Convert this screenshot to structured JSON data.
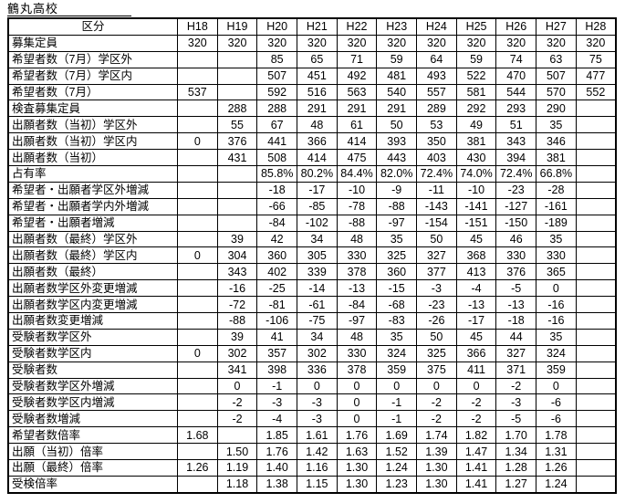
{
  "title": "鶴丸高校",
  "chart_data": {
    "type": "table",
    "title": "鶴丸高校",
    "columns": [
      "区分",
      "H18",
      "H19",
      "H20",
      "H21",
      "H22",
      "H23",
      "H24",
      "H25",
      "H26",
      "H27",
      "H28"
    ],
    "rows": [
      {
        "label": "募集定員",
        "values": [
          "320",
          "320",
          "320",
          "320",
          "320",
          "320",
          "320",
          "320",
          "320",
          "320",
          "320"
        ]
      },
      {
        "label": "希望者数（7月）学区外",
        "values": [
          "",
          "",
          "85",
          "65",
          "71",
          "59",
          "64",
          "59",
          "74",
          "63",
          "75"
        ]
      },
      {
        "label": "希望者数（7月）学区内",
        "values": [
          "",
          "",
          "507",
          "451",
          "492",
          "481",
          "493",
          "522",
          "470",
          "507",
          "477"
        ]
      },
      {
        "label": "希望者数（7月）",
        "values": [
          "537",
          "",
          "592",
          "516",
          "563",
          "540",
          "557",
          "581",
          "544",
          "570",
          "552"
        ]
      },
      {
        "label": "検査募集定員",
        "values": [
          "",
          "288",
          "288",
          "291",
          "291",
          "291",
          "289",
          "292",
          "293",
          "290",
          ""
        ]
      },
      {
        "label": "出願者数（当初）学区外",
        "values": [
          "",
          "55",
          "67",
          "48",
          "61",
          "50",
          "53",
          "49",
          "51",
          "35",
          ""
        ]
      },
      {
        "label": "出願者数（当初）学区内",
        "values": [
          "0",
          "376",
          "441",
          "366",
          "414",
          "393",
          "350",
          "381",
          "343",
          "346",
          ""
        ]
      },
      {
        "label": "出願者数（当初）",
        "values": [
          "",
          "431",
          "508",
          "414",
          "475",
          "443",
          "403",
          "430",
          "394",
          "381",
          ""
        ]
      },
      {
        "label": "占有率",
        "values": [
          "",
          "",
          "85.8%",
          "80.2%",
          "84.4%",
          "82.0%",
          "72.4%",
          "74.0%",
          "72.4%",
          "66.8%",
          ""
        ]
      },
      {
        "label": "希望者・出願者学区外増減",
        "values": [
          "",
          "",
          "-18",
          "-17",
          "-10",
          "-9",
          "-11",
          "-10",
          "-23",
          "-28",
          ""
        ]
      },
      {
        "label": "希望者・出願者学内外増減",
        "values": [
          "",
          "",
          "-66",
          "-85",
          "-78",
          "-88",
          "-143",
          "-141",
          "-127",
          "-161",
          ""
        ]
      },
      {
        "label": "希望者・出願者増減",
        "values": [
          "",
          "",
          "-84",
          "-102",
          "-88",
          "-97",
          "-154",
          "-151",
          "-150",
          "-189",
          ""
        ]
      },
      {
        "label": "出願者数（最終）学区外",
        "values": [
          "",
          "39",
          "42",
          "34",
          "48",
          "35",
          "50",
          "45",
          "46",
          "35",
          ""
        ]
      },
      {
        "label": "出願者数（最終）学区内",
        "values": [
          "0",
          "304",
          "360",
          "305",
          "330",
          "325",
          "327",
          "368",
          "330",
          "330",
          ""
        ]
      },
      {
        "label": "出願者数（最終）",
        "values": [
          "",
          "343",
          "402",
          "339",
          "378",
          "360",
          "377",
          "413",
          "376",
          "365",
          ""
        ]
      },
      {
        "label": "出願者数学区外変更増減",
        "values": [
          "",
          "-16",
          "-25",
          "-14",
          "-13",
          "-15",
          "-3",
          "-4",
          "-5",
          "0",
          ""
        ]
      },
      {
        "label": "出願者数学区内変更増減",
        "values": [
          "",
          "-72",
          "-81",
          "-61",
          "-84",
          "-68",
          "-23",
          "-13",
          "-13",
          "-16",
          ""
        ]
      },
      {
        "label": "出願者数変更増減",
        "values": [
          "",
          "-88",
          "-106",
          "-75",
          "-97",
          "-83",
          "-26",
          "-17",
          "-18",
          "-16",
          ""
        ]
      },
      {
        "label": "受験者数学区外",
        "values": [
          "",
          "39",
          "41",
          "34",
          "48",
          "35",
          "50",
          "45",
          "44",
          "35",
          ""
        ]
      },
      {
        "label": "受験者数学区内",
        "values": [
          "0",
          "302",
          "357",
          "302",
          "330",
          "324",
          "325",
          "366",
          "327",
          "324",
          ""
        ]
      },
      {
        "label": "受験者数",
        "values": [
          "",
          "341",
          "398",
          "336",
          "378",
          "359",
          "375",
          "411",
          "371",
          "359",
          ""
        ]
      },
      {
        "label": "受験者数学区外増減",
        "values": [
          "",
          "0",
          "-1",
          "0",
          "0",
          "0",
          "0",
          "0",
          "-2",
          "0",
          ""
        ]
      },
      {
        "label": "受験者数学区内増減",
        "values": [
          "",
          "-2",
          "-3",
          "-3",
          "0",
          "-1",
          "-2",
          "-2",
          "-3",
          "-6",
          ""
        ]
      },
      {
        "label": "受験者数増減",
        "values": [
          "",
          "-2",
          "-4",
          "-3",
          "0",
          "-1",
          "-2",
          "-2",
          "-5",
          "-6",
          ""
        ]
      },
      {
        "label": "希望者数倍率",
        "values": [
          "1.68",
          "",
          "1.85",
          "1.61",
          "1.76",
          "1.69",
          "1.74",
          "1.82",
          "1.70",
          "1.78",
          ""
        ]
      },
      {
        "label": "出願（当初）倍率",
        "values": [
          "",
          "1.50",
          "1.76",
          "1.42",
          "1.63",
          "1.52",
          "1.39",
          "1.47",
          "1.34",
          "1.31",
          ""
        ]
      },
      {
        "label": "出願（最終）倍率",
        "values": [
          "1.26",
          "1.19",
          "1.40",
          "1.16",
          "1.30",
          "1.24",
          "1.30",
          "1.41",
          "1.28",
          "1.26",
          ""
        ]
      },
      {
        "label": "受検倍率",
        "values": [
          "",
          "1.18",
          "1.38",
          "1.15",
          "1.30",
          "1.23",
          "1.30",
          "1.41",
          "1.27",
          "1.24",
          ""
        ]
      }
    ]
  }
}
